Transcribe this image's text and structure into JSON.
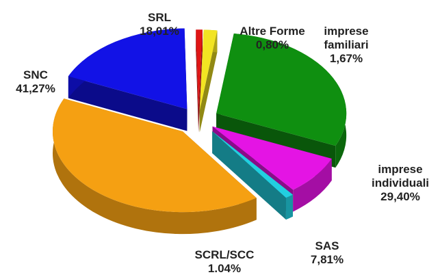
{
  "chart_data": {
    "type": "pie3d",
    "categories": [
      "Altre Forme",
      "imprese familiari",
      "imprese individuali",
      "SAS",
      "SCRL/SCC",
      "SNC",
      "SRL"
    ],
    "values": [
      0.8,
      1.67,
      29.4,
      7.81,
      1.04,
      41.27,
      18.01
    ],
    "value_labels": [
      "0,80%",
      "1,67%",
      "29,40%",
      "7,81%",
      "1.04%",
      "41,27%",
      "18,01%"
    ],
    "colors": [
      "#e01515",
      "#f2e422",
      "#0f8f10",
      "#e414e4",
      "#22cfe0",
      "#f5a012",
      "#1212e6"
    ]
  }
}
